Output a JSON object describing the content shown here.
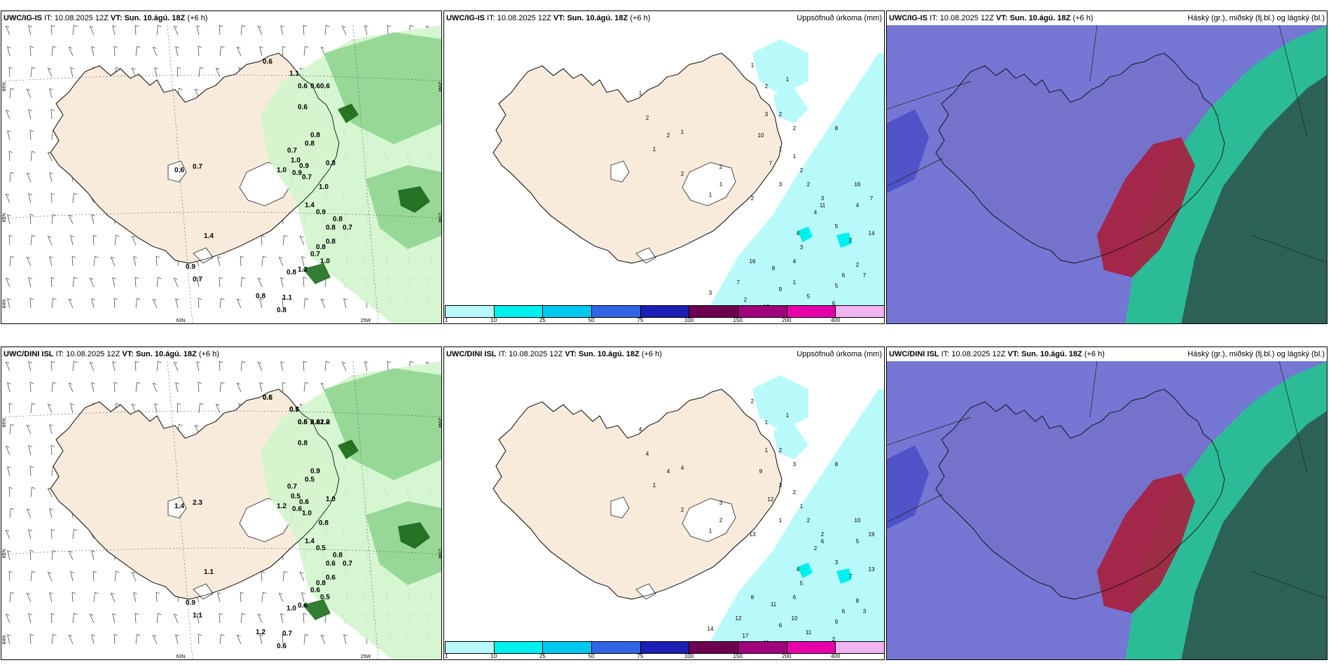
{
  "panels": [
    {
      "model": "UWC/IG-IS",
      "it_label": "IT:",
      "it_value": "10.08.2025 12Z",
      "vt_label": "VT:",
      "vt_value": "Sun. 10.ágú. 18Z",
      "lead": "(+6 h)",
      "title_right": "",
      "axes": [
        "66N",
        "65N",
        "64N",
        "63N",
        "25W",
        "20W",
        "15W"
      ],
      "labels": [
        "0.6",
        "1.1",
        "0.6",
        "0.6",
        "0.6",
        "0.6",
        "0.8",
        "0.8",
        "0.7",
        "1.0",
        "0.9",
        "0.9",
        "1.0",
        "0.7",
        "0.6",
        "0.8",
        "0.7",
        "1.0",
        "1.4",
        "0.9",
        "0.8",
        "0.8",
        "0.7",
        "0.8",
        "0.7",
        "1.0",
        "1.2",
        "0.8",
        "1.4",
        "0.9",
        "0.7",
        "0.8",
        "1.1",
        "0.8",
        "0.8"
      ]
    },
    {
      "model": "UWC/IG-IS",
      "it_label": "IT:",
      "it_value": "10.08.2025 12Z",
      "vt_label": "VT:",
      "vt_value": "Sun. 10.ágú. 18Z",
      "lead": "(+6 h)",
      "title_right": "Uppsöfnuð úrkoma (mm)",
      "labels": [
        "1",
        "2",
        "2",
        "1",
        "2",
        "1",
        "1",
        "1",
        "2",
        "3",
        "2",
        "1",
        "1",
        "1",
        "2",
        "3",
        "2",
        "4",
        "3",
        "2",
        "4",
        "3",
        "4",
        "5",
        "2",
        "4",
        "2",
        "6",
        "5",
        "1",
        "2",
        "7",
        "10",
        "8",
        "16",
        "9",
        "5",
        "3",
        "4",
        "5",
        "3",
        "2",
        "7",
        "10",
        "8",
        "11",
        "7",
        "6",
        "14",
        "7",
        "16",
        "2",
        "1"
      ]
    },
    {
      "model": "UWC/IG-IS",
      "it_label": "IT:",
      "it_value": "10.08.2025 12Z",
      "vt_label": "VT:",
      "vt_value": "Sun. 10.ágú. 18Z",
      "lead": "(+6 h)",
      "title_right": "Háský (gr.), miðský (fj.bl.) og lágský (bl.)"
    },
    {
      "model": "UWC/DINI ISL",
      "it_label": "IT:",
      "it_value": "10.08.2025 12Z",
      "vt_label": "VT:",
      "vt_value": "Sun. 10.ágú. 18Z",
      "lead": "(+6 h)",
      "title_right": "",
      "axes": [
        "66N",
        "65N",
        "64N",
        "63N",
        "25W",
        "20W",
        "15W"
      ],
      "labels": [
        "0.5",
        "0.5",
        "0.5",
        "0.6",
        "1.0",
        "0.8",
        "0.9",
        "0.5",
        "0.7",
        "0.5",
        "0.6",
        "0.6",
        "1.2",
        "2.3",
        "1.4",
        "1.0",
        "1.0",
        "0.8",
        "1.4",
        "0.5",
        "0.8",
        "0.6",
        "0.7",
        "0.6",
        "0.6",
        "0.5",
        "0.6",
        "1.0",
        "1.1",
        "0.9",
        "1.1",
        "1.2",
        "0.7",
        "0.6",
        "0.8",
        "0.6",
        "0.7",
        "0.6",
        "2.2",
        "2.2"
      ]
    },
    {
      "model": "UWC/DINI ISL",
      "it_label": "IT:",
      "it_value": "10.08.2025 12Z",
      "vt_label": "VT:",
      "vt_value": "Sun. 10.ágú. 18Z",
      "lead": "(+6 h)",
      "title_right": "Uppsöfnuð úrkoma (mm)",
      "labels": [
        "4",
        "4",
        "4",
        "4",
        "3",
        "2",
        "1",
        "2",
        "1",
        "1",
        "2",
        "1",
        "3",
        "2",
        "1",
        "1",
        "2",
        "2",
        "2",
        "3",
        "4",
        "5",
        "6",
        "3",
        "7",
        "5",
        "8",
        "6",
        "9",
        "10",
        "17",
        "12",
        "11",
        "11",
        "8",
        "6",
        "11",
        "7",
        "10",
        "9",
        "14",
        "13",
        "12",
        "9",
        "8",
        "6",
        "3",
        "2",
        "13",
        "19",
        "10",
        "2",
        "1"
      ]
    },
    {
      "model": "UWC/DINI ISL",
      "it_label": "IT:",
      "it_value": "10.08.2025 12Z",
      "vt_label": "VT:",
      "vt_value": "Sun. 10.ágú. 18Z",
      "lead": "(+6 h)",
      "title_right": "Háský (gr.), miðský (fj.bl.) og lágský (bl.)"
    }
  ],
  "colorbar": {
    "colors": [
      "#b8fafa",
      "#00f0f0",
      "#00c8f0",
      "#3264e6",
      "#1e1eb4",
      "#6e0050",
      "#a0007a",
      "#e600aa",
      "#f0b4f0"
    ],
    "ticks": [
      "1",
      "10",
      "25",
      "50",
      "75",
      "100",
      "150",
      "200",
      "400"
    ]
  },
  "colors": {
    "land": "#f8ebdc",
    "precip_light": "#b8fafa",
    "precip_mid": "#00f0f0",
    "vis_light": "#d2f5cc",
    "vis_mid": "#8cd28c",
    "vis_dark": "#1e6e1e",
    "cloud_low": "#5050c8",
    "cloud_mid": "#aa1e3c",
    "cloud_high": "#1ec88c",
    "cloud_high_dark": "#2d5a50"
  }
}
